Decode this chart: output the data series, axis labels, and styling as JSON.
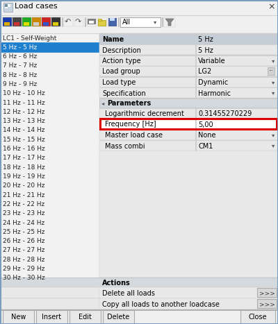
{
  "title": "Load cases",
  "bg_color": "#f0f0f0",
  "selected_bg": "#1e7fce",
  "selected_fg": "#ffffff",
  "left_items": [
    "LC1 - Self-Weight",
    "5 Hz - 5 Hz",
    "6 Hz - 6 Hz",
    "7 Hz - 7 Hz",
    "8 Hz - 8 Hz",
    "9 Hz - 9 Hz",
    "10 Hz - 10 Hz",
    "11 Hz - 11 Hz",
    "12 Hz - 12 Hz",
    "13 Hz - 13 Hz",
    "14 Hz - 14 Hz",
    "15 Hz - 15 Hz",
    "16 Hz - 16 Hz",
    "17 Hz - 17 Hz",
    "18 Hz - 18 Hz",
    "19 Hz - 19 Hz",
    "20 Hz - 20 Hz",
    "21 Hz - 21 Hz",
    "22 Hz - 22 Hz",
    "23 Hz - 23 Hz",
    "24 Hz - 24 Hz",
    "25 Hz - 25 Hz",
    "26 Hz - 26 Hz",
    "27 Hz - 27 Hz",
    "28 Hz - 28 Hz",
    "29 Hz - 29 Hz",
    "30 Hz - 30 Hz"
  ],
  "selected_index": 1,
  "right_rows": [
    {
      "label": "Name",
      "value": "5 Hz",
      "dropdown": false,
      "header": true
    },
    {
      "label": "Description",
      "value": "5 Hz",
      "dropdown": false,
      "header": false
    },
    {
      "label": "Action type",
      "value": "Variable",
      "dropdown": true,
      "header": false
    },
    {
      "label": "Load group",
      "value": "LG2",
      "dropdown": true,
      "header": false,
      "extra_btn": true
    },
    {
      "label": "Load type",
      "value": "Dynamic",
      "dropdown": true,
      "header": false
    },
    {
      "label": "Specification",
      "value": "Harmonic",
      "dropdown": true,
      "header": false
    }
  ],
  "params_label": "Parameters",
  "param_rows": [
    {
      "label": "Logarithmic decrement",
      "value": "0.31455270229",
      "highlight": false,
      "dropdown": false
    },
    {
      "label": "Frequency [Hz]",
      "value": "5,00",
      "highlight": true,
      "dropdown": false
    },
    {
      "label": "Master load case",
      "value": "None",
      "highlight": false,
      "dropdown": true
    },
    {
      "label": "Mass combi",
      "value": "CM1",
      "highlight": false,
      "dropdown": true
    }
  ],
  "actions_label": "Actions",
  "action_rows": [
    {
      "label": "Delete all loads",
      "btn": ">>>"
    },
    {
      "label": "Copy all loads to another loadcase",
      "btn": ">>>"
    }
  ],
  "bottom_buttons_left": [
    "New",
    "Insert",
    "Edit",
    "Delete"
  ],
  "bottom_button_right": "Close",
  "highlight_color": "#dd0000"
}
